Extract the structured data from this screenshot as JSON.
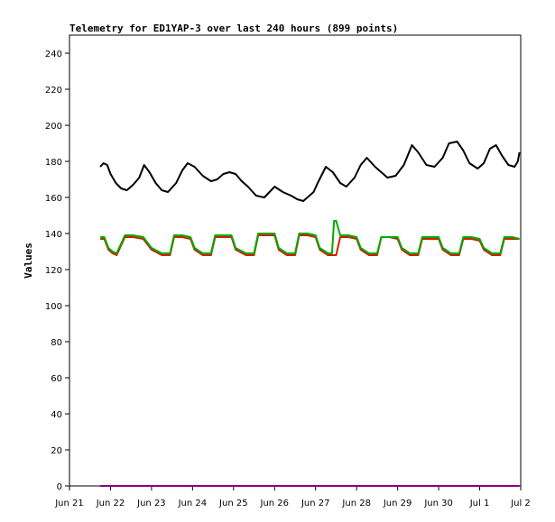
{
  "chart_data": {
    "type": "line",
    "title": "Telemetry for ED1YAP-3 over last 240 hours (899 points)",
    "xlabel": "",
    "ylabel": "Values",
    "ylim": [
      0,
      250
    ],
    "y_ticks": [
      0,
      20,
      40,
      60,
      80,
      100,
      120,
      140,
      160,
      180,
      200,
      220,
      240
    ],
    "x_ticks": [
      "Jun 21",
      "Jun 22",
      "Jun 23",
      "Jun 24",
      "Jun 25",
      "Jun 26",
      "Jun 27",
      "Jun 28",
      "Jun 29",
      "Jun 30",
      "Jul 1",
      "Jul 2"
    ],
    "x_range_days": [
      0,
      11
    ],
    "grid": false,
    "legend": "none",
    "series": [
      {
        "color": "#000000",
        "x": [
          0.75,
          0.83,
          0.92,
          1.0,
          1.13,
          1.26,
          1.4,
          1.55,
          1.7,
          1.82,
          1.95,
          2.1,
          2.25,
          2.4,
          2.6,
          2.75,
          2.88,
          3.05,
          3.25,
          3.45,
          3.6,
          3.75,
          3.9,
          4.05,
          4.2,
          4.35,
          4.55,
          4.75,
          5.0,
          5.2,
          5.4,
          5.55,
          5.7,
          5.95,
          6.05,
          6.25,
          6.42,
          6.6,
          6.75,
          6.95,
          7.1,
          7.25,
          7.45,
          7.6,
          7.75,
          7.95,
          8.15,
          8.35,
          8.5,
          8.7,
          8.9,
          9.1,
          9.25,
          9.45,
          9.6,
          9.75,
          9.95,
          10.1,
          10.25,
          10.4,
          10.55,
          10.7,
          10.85,
          10.93,
          10.97
        ],
        "y": [
          177,
          179,
          178,
          173,
          168,
          165,
          164,
          167,
          171,
          178,
          174,
          168,
          164,
          163,
          168,
          175,
          179,
          177,
          172,
          169,
          170,
          173,
          174,
          173,
          169,
          166,
          161,
          160,
          166,
          163,
          161,
          159,
          158,
          163,
          168,
          177,
          174,
          168,
          166,
          171,
          178,
          182,
          177,
          174,
          171,
          172,
          178,
          189,
          185,
          178,
          177,
          182,
          190,
          191,
          186,
          179,
          176,
          179,
          187,
          189,
          183,
          178,
          177,
          180,
          185
        ]
      },
      {
        "color": "#cc2200",
        "x": [
          0.75,
          0.85,
          0.95,
          1.05,
          1.15,
          1.35,
          1.55,
          1.8,
          2.0,
          2.25,
          2.45,
          2.55,
          2.75,
          2.95,
          3.05,
          3.25,
          3.45,
          3.55,
          3.75,
          3.95,
          4.05,
          4.3,
          4.5,
          4.6,
          4.8,
          5.0,
          5.1,
          5.3,
          5.5,
          5.6,
          5.8,
          6.0,
          6.1,
          6.3,
          6.5,
          6.6,
          6.8,
          7.0,
          7.1,
          7.3,
          7.5,
          7.6,
          7.8,
          8.0,
          8.1,
          8.3,
          8.5,
          8.6,
          8.8,
          9.0,
          9.1,
          9.3,
          9.5,
          9.6,
          9.8,
          10.0,
          10.1,
          10.3,
          10.5,
          10.6,
          10.8,
          10.97
        ],
        "y": [
          137,
          137,
          131,
          129,
          128,
          138,
          138,
          137,
          131,
          128,
          128,
          138,
          138,
          137,
          131,
          128,
          128,
          138,
          138,
          138,
          131,
          128,
          128,
          139,
          139,
          139,
          131,
          128,
          128,
          139,
          139,
          138,
          131,
          128,
          128,
          138,
          138,
          137,
          131,
          128,
          128,
          138,
          138,
          137,
          131,
          128,
          128,
          137,
          137,
          137,
          131,
          128,
          128,
          137,
          137,
          136,
          131,
          128,
          128,
          137,
          137,
          137
        ]
      },
      {
        "color": "#00aa00",
        "x": [
          0.75,
          0.85,
          0.95,
          1.05,
          1.15,
          1.35,
          1.55,
          1.8,
          2.0,
          2.25,
          2.45,
          2.55,
          2.75,
          2.95,
          3.05,
          3.25,
          3.45,
          3.55,
          3.75,
          3.95,
          4.05,
          4.3,
          4.5,
          4.6,
          4.8,
          5.0,
          5.1,
          5.3,
          5.5,
          5.6,
          5.8,
          6.0,
          6.1,
          6.3,
          6.4,
          6.45,
          6.5,
          6.6,
          6.8,
          7.0,
          7.1,
          7.3,
          7.5,
          7.6,
          7.8,
          8.0,
          8.1,
          8.3,
          8.5,
          8.6,
          8.8,
          9.0,
          9.1,
          9.3,
          9.5,
          9.6,
          9.8,
          10.0,
          10.1,
          10.3,
          10.5,
          10.6,
          10.8,
          10.97
        ],
        "y": [
          138,
          138,
          132,
          130,
          129,
          139,
          139,
          138,
          132,
          129,
          129,
          139,
          139,
          138,
          132,
          129,
          129,
          139,
          139,
          139,
          132,
          129,
          129,
          140,
          140,
          140,
          132,
          129,
          129,
          140,
          140,
          139,
          132,
          129,
          129,
          147,
          147,
          139,
          139,
          138,
          132,
          129,
          129,
          138,
          138,
          138,
          132,
          129,
          129,
          138,
          138,
          138,
          132,
          129,
          129,
          138,
          138,
          137,
          132,
          129,
          129,
          138,
          138,
          137
        ]
      },
      {
        "color": "#880088",
        "x": [
          0.75,
          10.97
        ],
        "y": [
          0,
          0
        ]
      }
    ]
  }
}
